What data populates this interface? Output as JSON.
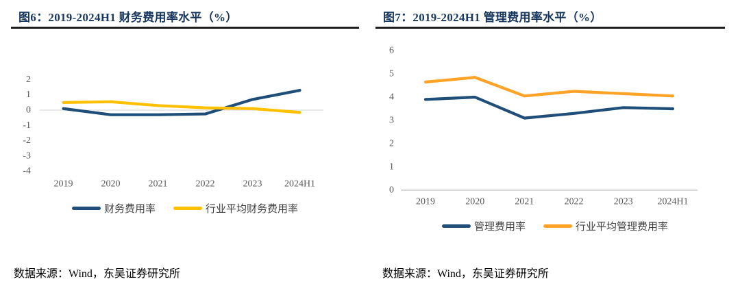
{
  "page": {
    "background": "#ffffff"
  },
  "figures": [
    {
      "title": "图6：2019-2024H1 财务费用率水平（%）",
      "source": "数据来源：Wind，东吴证券研究所",
      "legend": [
        {
          "label": "财务费用率"
        },
        {
          "label": "行业平均财务费用率"
        }
      ]
    },
    {
      "title": "图7：2019-2024H1 管理费用率水平（%）",
      "source": "数据来源：Wind，东吴证券研究所",
      "legend": [
        {
          "label": "管理费用率"
        },
        {
          "label": "行业平均管理费用率"
        }
      ]
    }
  ],
  "chart_data": [
    {
      "type": "line",
      "title": "图6：2019-2024H1 财务费用率水平（%）",
      "categories": [
        "2019",
        "2020",
        "2021",
        "2022",
        "2023",
        "2024H1"
      ],
      "series": [
        {
          "name": "财务费用率",
          "color": "#1F4E79",
          "values": [
            0.1,
            -0.3,
            -0.3,
            -0.25,
            0.7,
            1.3
          ]
        },
        {
          "name": "行业平均财务费用率",
          "color": "#FFC000",
          "values": [
            0.5,
            0.55,
            0.3,
            0.15,
            0.1,
            -0.15
          ]
        }
      ],
      "xlabel": "",
      "ylabel": "",
      "ylim": [
        -4,
        2
      ],
      "ytick_step": 1,
      "grid": "zero-line-only",
      "legend_position": "bottom"
    },
    {
      "type": "line",
      "title": "图7：2019-2024H1 管理费用率水平（%）",
      "categories": [
        "2019",
        "2020",
        "2021",
        "2022",
        "2023",
        "2024H1"
      ],
      "series": [
        {
          "name": "管理费用率",
          "color": "#1F4E79",
          "values": [
            3.9,
            4.0,
            3.1,
            3.3,
            3.55,
            3.5
          ]
        },
        {
          "name": "行业平均管理费用率",
          "color": "#FFA226",
          "values": [
            4.65,
            4.85,
            4.05,
            4.25,
            4.15,
            4.05
          ]
        }
      ],
      "xlabel": "",
      "ylabel": "",
      "ylim": [
        0,
        6
      ],
      "ytick_step": 1,
      "grid": "baseline-only",
      "legend_position": "bottom"
    }
  ]
}
